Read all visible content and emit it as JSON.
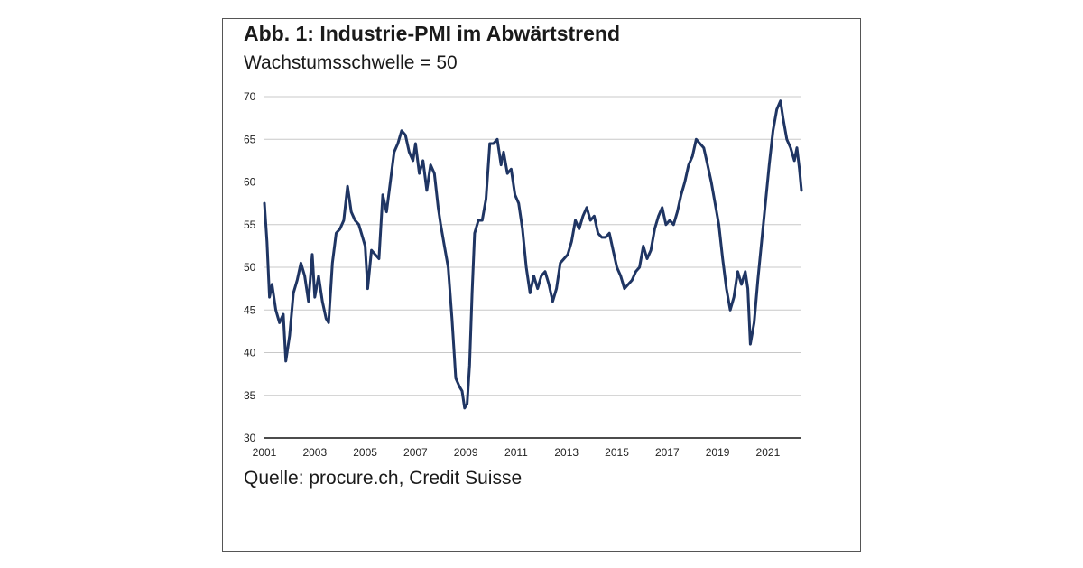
{
  "chart_data": {
    "type": "line",
    "title": "Abb. 1: Industrie-PMI im Abwärtstrend",
    "subtitle": "Wachstumsschwelle = 50",
    "source": "Quelle: procure.ch, Credit Suisse",
    "xlabel": "",
    "ylabel": "",
    "xlim": [
      2001,
      2022.33
    ],
    "ylim": [
      30,
      70
    ],
    "y_ticks": [
      30,
      35,
      40,
      45,
      50,
      55,
      60,
      65,
      70
    ],
    "x_ticks": [
      "2001",
      "2003",
      "2005",
      "2007",
      "2009",
      "2011",
      "2013",
      "2015",
      "2017",
      "2019",
      "2021"
    ],
    "grid": "horizontal",
    "line_color": "#1f3563",
    "series": [
      {
        "x": [
          2001.0,
          2001.1,
          2001.2,
          2001.3,
          2001.45,
          2001.6,
          2001.75,
          2001.85,
          2002.0,
          2002.15,
          2002.3,
          2002.45,
          2002.6,
          2002.75,
          2002.9,
          2003.0,
          2003.15,
          2003.3,
          2003.45,
          2003.55,
          2003.7,
          2003.85,
          2004.0,
          2004.15,
          2004.3,
          2004.45,
          2004.6,
          2004.75,
          2004.9,
          2005.0,
          2005.1,
          2005.25,
          2005.4,
          2005.55,
          2005.7,
          2005.85,
          2006.0,
          2006.15,
          2006.3,
          2006.45,
          2006.6,
          2006.75,
          2006.9,
          2007.0,
          2007.15,
          2007.3,
          2007.45,
          2007.6,
          2007.75,
          2007.9,
          2008.0,
          2008.15,
          2008.3,
          2008.45,
          2008.6,
          2008.75,
          2008.85,
          2008.95,
          2009.05,
          2009.15,
          2009.25,
          2009.35,
          2009.5,
          2009.65,
          2009.8,
          2009.95,
          2010.1,
          2010.25,
          2010.4,
          2010.5,
          2010.65,
          2010.8,
          2010.95,
          2011.1,
          2011.25,
          2011.4,
          2011.55,
          2011.7,
          2011.85,
          2012.0,
          2012.15,
          2012.3,
          2012.45,
          2012.6,
          2012.75,
          2012.9,
          2013.05,
          2013.2,
          2013.35,
          2013.5,
          2013.65,
          2013.8,
          2013.95,
          2014.1,
          2014.25,
          2014.4,
          2014.55,
          2014.7,
          2014.85,
          2015.0,
          2015.15,
          2015.3,
          2015.45,
          2015.6,
          2015.75,
          2015.9,
          2016.05,
          2016.2,
          2016.35,
          2016.5,
          2016.65,
          2016.8,
          2016.95,
          2017.1,
          2017.25,
          2017.4,
          2017.55,
          2017.7,
          2017.85,
          2018.0,
          2018.15,
          2018.3,
          2018.45,
          2018.6,
          2018.75,
          2018.9,
          2019.05,
          2019.2,
          2019.35,
          2019.5,
          2019.65,
          2019.8,
          2019.95,
          2020.1,
          2020.2,
          2020.3,
          2020.45,
          2020.6,
          2020.75,
          2020.9,
          2021.05,
          2021.2,
          2021.35,
          2021.5,
          2021.6,
          2021.75,
          2021.9,
          2022.05,
          2022.15,
          2022.25,
          2022.33
        ],
        "values": [
          57.5,
          53.0,
          46.5,
          48.0,
          45.0,
          43.5,
          44.5,
          39.0,
          42.0,
          47.0,
          48.5,
          50.5,
          49.0,
          46.0,
          51.5,
          46.5,
          49.0,
          46.0,
          44.0,
          43.5,
          50.5,
          54.0,
          54.5,
          55.5,
          59.5,
          56.5,
          55.5,
          55.0,
          53.5,
          52.5,
          47.5,
          52.0,
          51.5,
          51.0,
          58.5,
          56.5,
          60.0,
          63.5,
          64.5,
          66.0,
          65.5,
          63.5,
          62.5,
          64.5,
          61.0,
          62.5,
          59.0,
          62.0,
          61.0,
          57.0,
          55.0,
          52.5,
          50.0,
          44.0,
          37.0,
          36.0,
          35.5,
          33.5,
          34.0,
          38.5,
          47.0,
          54.0,
          55.5,
          55.5,
          58.0,
          64.5,
          64.5,
          65.0,
          62.0,
          63.5,
          61.0,
          61.5,
          58.5,
          57.5,
          54.5,
          50.0,
          47.0,
          49.0,
          47.5,
          49.0,
          49.5,
          48.0,
          46.0,
          47.5,
          50.5,
          51.0,
          51.5,
          53.0,
          55.5,
          54.5,
          56.0,
          57.0,
          55.5,
          56.0,
          54.0,
          53.5,
          53.5,
          54.0,
          52.0,
          50.0,
          49.0,
          47.5,
          48.0,
          48.5,
          49.5,
          50.0,
          52.5,
          51.0,
          52.0,
          54.5,
          56.0,
          57.0,
          55.0,
          55.5,
          55.0,
          56.5,
          58.5,
          60.0,
          62.0,
          63.0,
          65.0,
          64.5,
          64.0,
          62.0,
          60.0,
          57.5,
          55.0,
          51.0,
          47.5,
          45.0,
          46.5,
          49.5,
          48.0,
          49.5,
          47.5,
          41.0,
          43.5,
          48.5,
          53.0,
          57.5,
          62.0,
          66.0,
          68.5,
          69.5,
          67.5,
          65.0,
          64.0,
          62.5,
          64.0,
          61.5,
          59.0
        ]
      }
    ]
  }
}
